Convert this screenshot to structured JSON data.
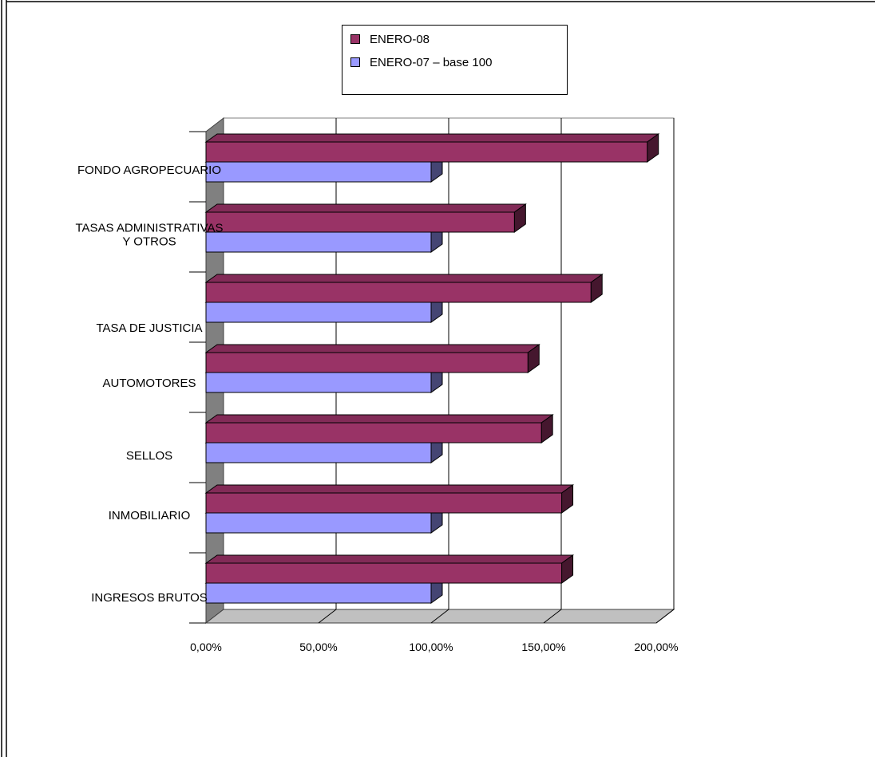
{
  "chart_data": {
    "type": "bar",
    "orientation": "horizontal",
    "style": "3d",
    "categories": [
      [
        "FONDO AGROPECUARIO"
      ],
      [
        "TASAS ADMINISTRATIVAS",
        "Y OTROS"
      ],
      [
        "TASA DE JUSTICIA"
      ],
      [
        "AUTOMOTORES"
      ],
      [
        "SELLOS"
      ],
      [
        "INMOBILIARIO"
      ],
      [
        "INGRESOS BRUTOS"
      ]
    ],
    "series": [
      {
        "name": "ENERO-08",
        "color": "#993366",
        "values": [
          196,
          137,
          171,
          143,
          149,
          158,
          158
        ]
      },
      {
        "name": "ENERO-07 – base 100",
        "color": "#9999ff",
        "values": [
          100,
          100,
          100,
          100,
          100,
          100,
          100
        ]
      }
    ],
    "xlim": [
      0,
      200
    ],
    "xticks": [
      "0,00%",
      "50,00%",
      "100,00%",
      "150,00%",
      "200,00%"
    ],
    "grid": true,
    "legend_position": "top"
  }
}
